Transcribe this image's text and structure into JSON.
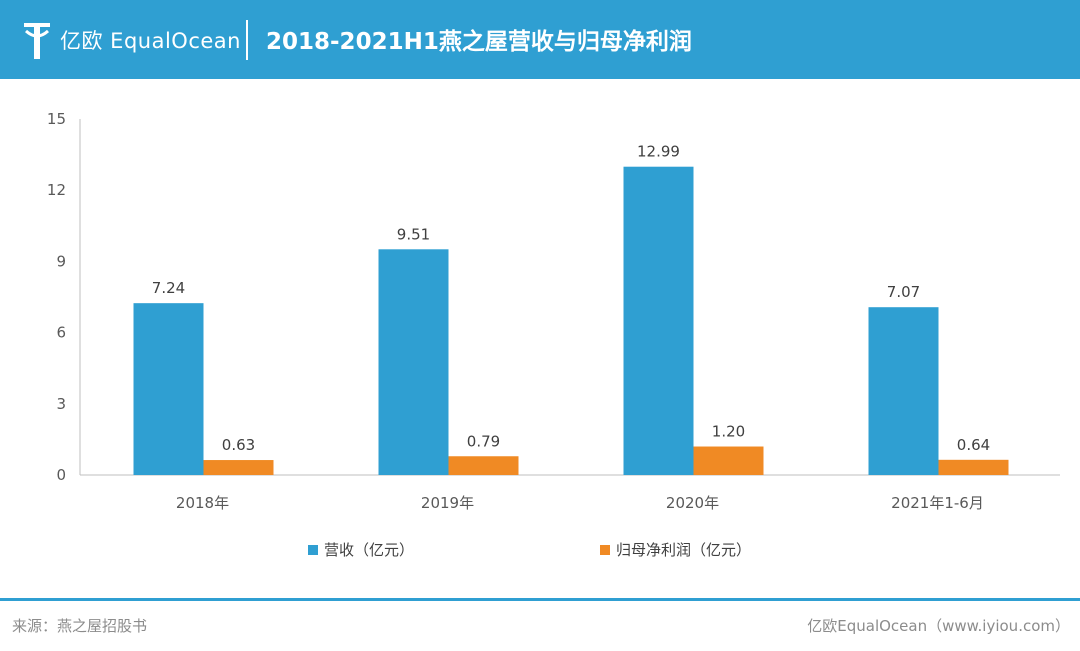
{
  "header": {
    "logo_text": "亿欧 EqualOcean",
    "title": "2018-2021H1燕之屋营收与归母净利润"
  },
  "colors": {
    "header_bg": "#2f9fd2",
    "revenue": "#2f9fd2",
    "net_profit": "#f08a24"
  },
  "chart_data": {
    "type": "bar",
    "categories": [
      "2018年",
      "2019年",
      "2020年",
      "2021年1-6月"
    ],
    "series": [
      {
        "name": "营收（亿元）",
        "values": [
          7.24,
          9.51,
          12.99,
          7.07
        ],
        "labels": [
          "7.24",
          "9.51",
          "12.99",
          "7.07"
        ],
        "color": "#2f9fd2"
      },
      {
        "name": "归母净利润（亿元）",
        "values": [
          0.63,
          0.79,
          1.2,
          0.64
        ],
        "labels": [
          "0.63",
          "0.79",
          "1.20",
          "0.64"
        ],
        "color": "#f08a24"
      }
    ],
    "ylim": [
      0,
      15
    ],
    "yticks": [
      0,
      3,
      6,
      9,
      12,
      15
    ],
    "grid": false,
    "legend_position": "bottom"
  },
  "footer": {
    "source": "来源：燕之屋招股书",
    "credit": "亿欧EqualOcean（www.iyiou.com）"
  }
}
